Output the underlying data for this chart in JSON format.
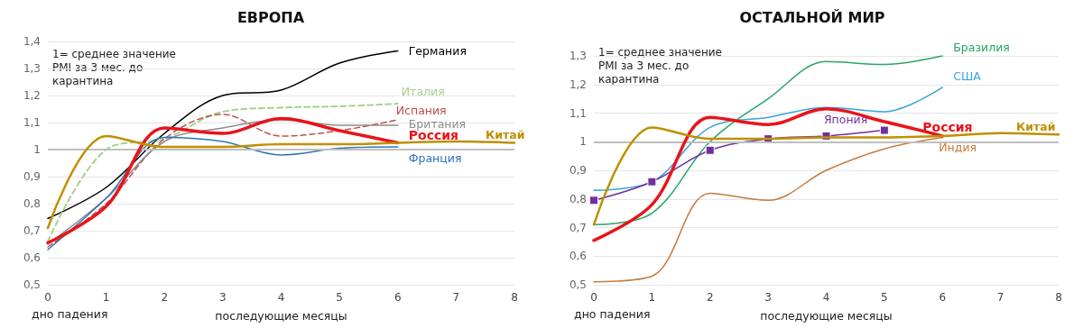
{
  "chart_data": [
    {
      "type": "line",
      "title": "ЕВРОПА",
      "xlabel": "последующие месяцы",
      "annotations": [
        "1= среднее значение PMI за 3 мес. до карантина",
        "дно падения"
      ],
      "x": [
        0,
        1,
        2,
        3,
        4,
        5,
        6
      ],
      "series": [
        {
          "name": "Германия",
          "color": "#000000",
          "values": [
            0.745,
            0.86,
            1.06,
            1.2,
            1.22,
            1.32,
            1.365
          ]
        },
        {
          "name": "Италия",
          "color": "#a9d18e",
          "line_style": "dashed",
          "values": [
            0.66,
            1.0,
            1.04,
            1.14,
            1.155,
            1.16,
            1.17
          ]
        },
        {
          "name": "Испания",
          "color": "#c0504d",
          "line_style": "dashed",
          "values": [
            0.64,
            0.8,
            1.04,
            1.13,
            1.05,
            1.07,
            1.11
          ]
        },
        {
          "name": "Британия",
          "color": "#8c8c8c",
          "values": [
            0.65,
            0.82,
            1.03,
            1.08,
            1.11,
            1.09,
            1.09
          ]
        },
        {
          "name": "Россия",
          "color": "#e8141b",
          "values": [
            0.655,
            0.79,
            1.08,
            1.06,
            1.115,
            1.07,
            1.025
          ]
        },
        {
          "name": "Франция",
          "color": "#2e75b6",
          "values": [
            0.63,
            0.82,
            1.045,
            1.03,
            0.98,
            1.005,
            1.01
          ]
        },
        {
          "name": "Китай",
          "color": "#bf9000",
          "x": [
            0,
            1,
            2,
            3,
            4,
            5,
            6,
            7,
            8
          ],
          "values": [
            0.71,
            1.05,
            1.01,
            1.01,
            1.02,
            1.02,
            1.025,
            1.03,
            1.025
          ]
        }
      ],
      "xlim": [
        0,
        8
      ],
      "xticks": [
        0,
        1,
        2,
        3,
        4,
        5,
        6,
        7,
        8
      ],
      "ylim": [
        0.5,
        1.4
      ],
      "yticks": [
        {
          "value": 0.5,
          "label": "0,5"
        },
        {
          "value": 0.6,
          "label": "0,6"
        },
        {
          "value": 0.7,
          "label": "0,7"
        },
        {
          "value": 0.8,
          "label": "0,8"
        },
        {
          "value": 0.9,
          "label": "0,9"
        },
        1,
        {
          "value": 1.1,
          "label": "1,1"
        },
        {
          "value": 1.2,
          "label": "1,2"
        },
        {
          "value": 1.3,
          "label": "1,3"
        },
        {
          "value": 1.4,
          "label": "1,4"
        }
      ],
      "ref_lines": [
        {
          "axis": "y",
          "value": 1,
          "color": "#bfbfbf"
        }
      ],
      "grid": "y",
      "marker": "none",
      "line_style": "solid"
    },
    {
      "type": "line",
      "title": "ОСТАЛЬНОЙ МИР",
      "xlabel": "последующие месяцы",
      "annotations": [
        "1= среднее значение PMI за 3 мес. до карантина",
        "дно падения"
      ],
      "x": [
        0,
        1,
        2,
        3,
        4,
        5,
        6
      ],
      "series": [
        {
          "name": "Бразилия",
          "color": "#27a567",
          "values": [
            0.71,
            0.75,
            1.0,
            1.15,
            1.28,
            1.27,
            1.3
          ]
        },
        {
          "name": "США",
          "color": "#34a6d8",
          "values": [
            0.83,
            0.86,
            1.05,
            1.085,
            1.12,
            1.105,
            1.19
          ]
        },
        {
          "name": "Япония",
          "color": "#7030a0",
          "marker": "square",
          "x": [
            0,
            1,
            2,
            3,
            4,
            5
          ],
          "values": [
            0.795,
            0.86,
            0.97,
            1.01,
            1.02,
            1.04
          ]
        },
        {
          "name": "Россия",
          "color": "#e8141b",
          "values": [
            0.655,
            0.78,
            1.085,
            1.06,
            1.115,
            1.07,
            1.02
          ]
        },
        {
          "name": "Китай",
          "color": "#bf9000",
          "x": [
            0,
            1,
            2,
            3,
            4,
            5,
            6,
            7,
            8
          ],
          "values": [
            0.71,
            1.05,
            1.01,
            1.01,
            1.015,
            1.015,
            1.02,
            1.03,
            1.025
          ]
        },
        {
          "name": "Индия",
          "color": "#c67a3c",
          "values": [
            0.51,
            0.53,
            0.82,
            0.795,
            0.9,
            0.975,
            1.015
          ]
        }
      ],
      "xlim": [
        0,
        8
      ],
      "xticks": [
        0,
        1,
        2,
        3,
        4,
        5,
        6,
        7,
        8
      ],
      "ylim": [
        0.5,
        1.3
      ],
      "yticks": [
        {
          "value": 0.5,
          "label": "0,5"
        },
        {
          "value": 0.6,
          "label": "0,6"
        },
        {
          "value": 0.7,
          "label": "0,7"
        },
        {
          "value": 0.8,
          "label": "0,8"
        },
        {
          "value": 0.9,
          "label": "0,9"
        },
        1,
        {
          "value": 1.1,
          "label": "1,1"
        },
        {
          "value": 1.2,
          "label": "1,2"
        },
        {
          "value": 1.3,
          "label": "1,3"
        }
      ],
      "ref_lines": [
        {
          "axis": "y",
          "value": 1,
          "color": "#bfbfbf"
        }
      ],
      "grid": "y",
      "marker": "none",
      "line_style": "solid"
    }
  ]
}
